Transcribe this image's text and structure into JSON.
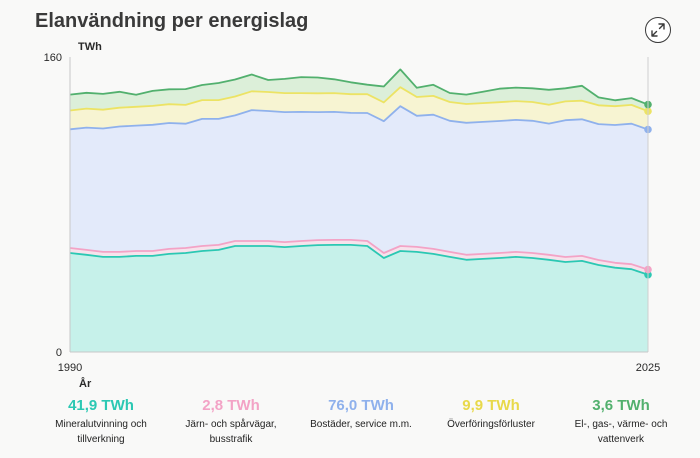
{
  "header": {
    "title": "Elanvändning per energislag"
  },
  "icons": {
    "expand": "expand-arrows-icon"
  },
  "chart_data": {
    "type": "area",
    "stacked": true,
    "title": "Elanvändning per energislag",
    "ylabel": "TWh",
    "xlabel": "År",
    "ylim": [
      0,
      160
    ],
    "y_ticks": [
      "0",
      "160"
    ],
    "x_ticks": [
      "1990",
      "2025"
    ],
    "grid": false,
    "x": [
      1990,
      1991,
      1992,
      1993,
      1994,
      1995,
      1996,
      1997,
      1998,
      1999,
      2000,
      2001,
      2002,
      2003,
      2004,
      2005,
      2006,
      2007,
      2008,
      2009,
      2010,
      2011,
      2012,
      2013,
      2014,
      2015,
      2016,
      2017,
      2018,
      2019,
      2020,
      2021,
      2022,
      2023,
      2024,
      2025
    ],
    "series": [
      {
        "name": "Mineralutvinning och tillverkning",
        "color": "#2bc8b3",
        "fill": "#c6f1ea",
        "values": [
          53.7,
          52.7,
          51.6,
          51.6,
          52.1,
          52.1,
          53.2,
          53.7,
          54.8,
          55.4,
          57.5,
          57.5,
          57.5,
          56.9,
          57.5,
          58.0,
          58.1,
          58.1,
          57.5,
          51.0,
          54.8,
          54.3,
          53.2,
          51.6,
          50.0,
          50.5,
          51.0,
          51.6,
          51.0,
          50.0,
          48.8,
          49.4,
          47.2,
          45.7,
          44.9,
          41.9
        ]
      },
      {
        "name": "Järn- och spårvägar, busstrafik",
        "color": "#f3a3c6",
        "fill": "#f6e3ec",
        "values": [
          2.7,
          2.7,
          2.7,
          2.7,
          2.7,
          2.7,
          2.7,
          2.7,
          2.7,
          2.7,
          2.7,
          2.7,
          2.7,
          2.7,
          2.7,
          2.7,
          2.7,
          2.7,
          2.7,
          2.7,
          2.7,
          2.7,
          2.7,
          2.7,
          2.7,
          2.7,
          2.7,
          2.7,
          2.7,
          2.7,
          2.7,
          2.7,
          2.7,
          2.7,
          2.7,
          2.8
        ]
      },
      {
        "name": "Bostäder, service m.m.",
        "color": "#8fb1ec",
        "fill": "#e3eafa",
        "values": [
          64.4,
          66.3,
          66.9,
          68.0,
          68.0,
          68.4,
          68.3,
          67.4,
          68.9,
          68.3,
          68.1,
          71.0,
          70.5,
          70.5,
          70.0,
          69.4,
          69.4,
          68.9,
          69.4,
          71.5,
          75.8,
          71.1,
          72.8,
          71.1,
          71.6,
          71.6,
          71.6,
          71.6,
          71.7,
          71.2,
          74.2,
          74.1,
          73.7,
          74.7,
          76.2,
          76.0
        ]
      },
      {
        "name": "Överföringsförluster",
        "color": "#ece364",
        "fill": "#f7f4d2",
        "values": [
          10.2,
          10.3,
          10.2,
          10.2,
          10.2,
          10.3,
          10.2,
          10.2,
          10.2,
          10.2,
          10.3,
          10.2,
          10.3,
          10.3,
          10.2,
          10.2,
          10.2,
          10.1,
          10.2,
          10.2,
          10.3,
          10.2,
          10.2,
          10.2,
          10.2,
          10.2,
          10.2,
          10.2,
          10.2,
          10.2,
          10.2,
          10.1,
          10.2,
          10.2,
          10.2,
          9.9
        ]
      },
      {
        "name": "El-, gas-, värme- och vattenverk",
        "color": "#52b06e",
        "fill": "#dcefd9",
        "values": [
          8.6,
          8.6,
          8.6,
          8.6,
          6.5,
          8.1,
          8.1,
          8.6,
          8.2,
          9.3,
          9.2,
          9.1,
          6.5,
          7.7,
          8.7,
          8.6,
          7.5,
          6.5,
          5.2,
          8.6,
          9.7,
          5.0,
          6.0,
          4.9,
          5.1,
          6.2,
          7.3,
          7.3,
          7.4,
          8.1,
          7.1,
          8.1,
          4.3,
          3.2,
          3.7,
          3.6
        ]
      }
    ]
  },
  "legend": [
    {
      "value": "41,9 TWh",
      "label_line1": "Mineralutvinning och",
      "label_line2": "tillverkning",
      "color": "#2bc8b3"
    },
    {
      "value": "2,8 TWh",
      "label_line1": "Järn- och spårvägar,",
      "label_line2": "busstrafik",
      "color": "#f3a3c6"
    },
    {
      "value": "76,0 TWh",
      "label_line1": "Bostäder, service m.m.",
      "label_line2": "",
      "color": "#8fb1ec"
    },
    {
      "value": "9,9 TWh",
      "label_line1": "Överföringsförluster",
      "label_line2": "",
      "color": "#e8d94a"
    },
    {
      "value": "3,6 TWh",
      "label_line1": "El-, gas-, värme- och",
      "label_line2": "vattenverk",
      "color": "#52b06e"
    }
  ]
}
